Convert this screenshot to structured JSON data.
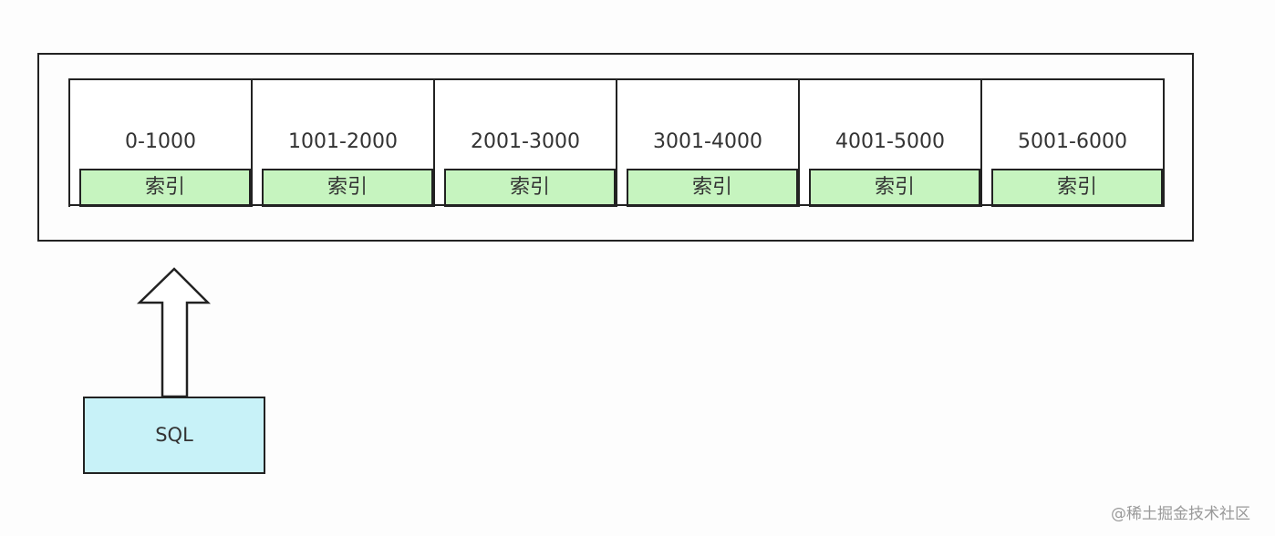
{
  "partitions": [
    {
      "range": "0-1000",
      "index_label": "索引"
    },
    {
      "range": "1001-2000",
      "index_label": "索引"
    },
    {
      "range": "2001-3000",
      "index_label": "索引"
    },
    {
      "range": "3001-4000",
      "index_label": "索引"
    },
    {
      "range": "4001-5000",
      "index_label": "索引"
    },
    {
      "range": "5001-6000",
      "index_label": "索引"
    }
  ],
  "sql_box": {
    "label": "SQL"
  },
  "watermark": "@稀土掘金技术社区",
  "colors": {
    "index_fill": "#c6f4bf",
    "sql_fill": "#c8f2f8",
    "stroke": "#222222"
  }
}
